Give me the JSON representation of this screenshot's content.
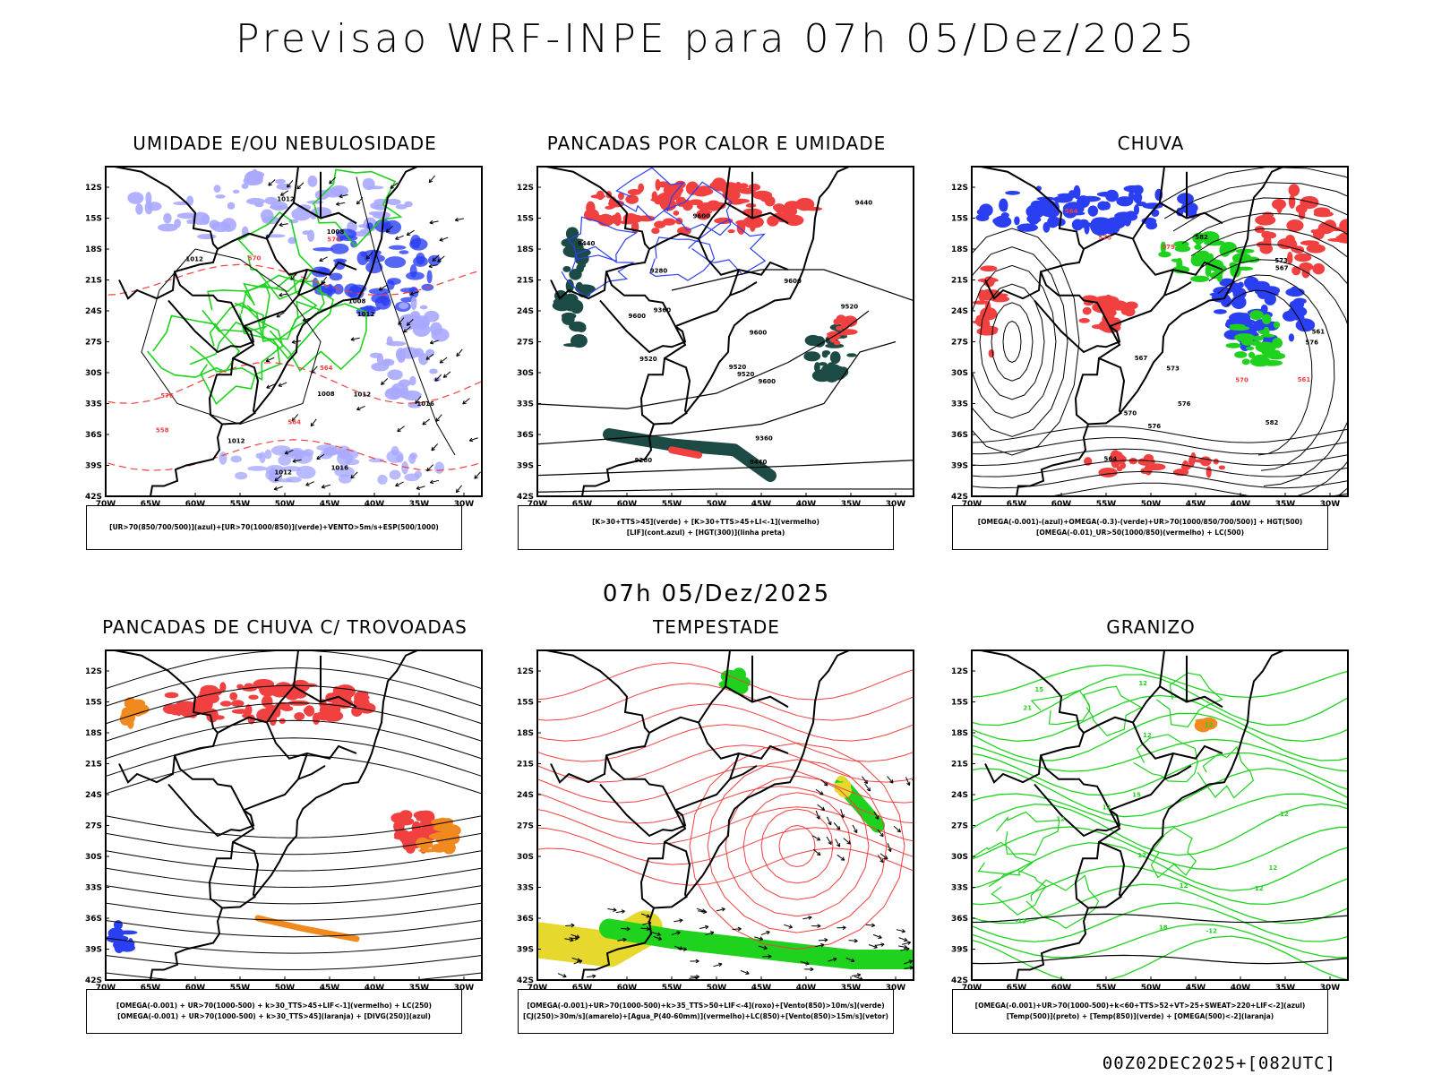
{
  "header": {
    "title": "Previsao WRF-INPE  para 07h 05/Dez/2025"
  },
  "mid_title": "07h 05/Dez/2025",
  "footer": "00Z02DEC2025+[082UTC]",
  "axes": {
    "lat_labels": [
      "12S",
      "15S",
      "18S",
      "21S",
      "24S",
      "27S",
      "30S",
      "33S",
      "36S",
      "39S",
      "42S"
    ],
    "lon_labels": [
      "70W",
      "65W",
      "60W",
      "55W",
      "50W",
      "45W",
      "40W",
      "35W",
      "30W"
    ]
  },
  "colors": {
    "blue": "#2b3ff2",
    "lightblue": "#a9a9ff",
    "green": "#1ed21e",
    "red": "#f04040",
    "orange": "#f08a1e",
    "yellow": "#e6d82c",
    "darkteal": "#1c4a45",
    "black": "#000000"
  },
  "panels": [
    {
      "id": "umidade",
      "title": "UMIDADE E/OU NEBULOSIDADE",
      "legend": [
        "[UR>70(850/700/500)](azul)+[UR>70(1000/850)](verde)+VENTO>5m/s+ESP(500/1000)"
      ],
      "contour_labels": [
        "1012",
        "1012",
        "1008",
        "1008",
        "1016",
        "1012",
        "1016",
        "1012",
        "1008",
        "1012",
        "1012",
        "570",
        "564",
        "564",
        "558",
        "576",
        "570"
      ]
    },
    {
      "id": "pancadas-calor",
      "title": "PANCADAS POR CALOR E UMIDADE",
      "legend": [
        "[K>30+TTS>45](verde) + [K>30+TTS>45+LI<-1](vermelho)",
        "[LIF](cont.azul) + [HGT(300)](linha preta)"
      ],
      "contour_labels": [
        "9600",
        "9600",
        "9600",
        "9520",
        "9600",
        "9520",
        "9520",
        "9520",
        "9440",
        "9440",
        "9360",
        "9360",
        "9280",
        "9280",
        "9600",
        "9440"
      ]
    },
    {
      "id": "chuva",
      "title": "CHUVA",
      "legend": [
        "[OMEGA(-0.001)-(azul)+OMEGA(-0.3)-(verde)+UR>70(1000/850/700/500)] + HGT(500)",
        "[OMEGA(-0.01)_UR>50(1000/850)(vermelho) + LC(500)"
      ],
      "contour_labels": [
        "582",
        "582",
        "579",
        "576",
        "576",
        "573",
        "573",
        "570",
        "570",
        "567",
        "567",
        "564",
        "564",
        "561",
        "561",
        "573",
        "576"
      ]
    },
    {
      "id": "pancadas-trovoadas",
      "title": "PANCADAS DE CHUVA C/ TROVOADAS",
      "legend": [
        "[OMEGA(-0.001) + UR>70(1000-500) + k>30_TTS>45+LIF<-1](vermelho) + LC(250)",
        "[OMEGA(-0.001) + UR>70(1000-500) + k>30_TTS>45](laranja) + [DIVG(250)](azul)"
      ],
      "contour_labels": []
    },
    {
      "id": "tempestade",
      "title": "TEMPESTADE",
      "legend": [
        "[OMEGA(-0.001)+UR>70(1000-500)+k>35_TTS>50+LIF<-4](roxo)+[Vento(850)>10m/s](verde)",
        "[CJ(250)>30m/s](amarelo)+[Agua_P(40-60mm)](vermelho)+LC(850)+[Vento(850)>15m/s](vetor)"
      ],
      "contour_labels": []
    },
    {
      "id": "granizo",
      "title": "GRANIZO",
      "legend": [
        "[OMEGA(-0.001)+UR>70(1000-500)+k<60+TTS>52+VT>25+SWEAT>220+LIF<-2](azul)",
        "[Temp(500)](preto) + [Temp(850)](verde) + [OMEGA(500)<-2](laranja)"
      ],
      "contour_labels": [
        "12",
        "12",
        "12",
        "12",
        "12",
        "12",
        "12",
        "12",
        "12",
        "12",
        "15",
        "15",
        "18",
        "21",
        "-12",
        "-12"
      ]
    }
  ]
}
